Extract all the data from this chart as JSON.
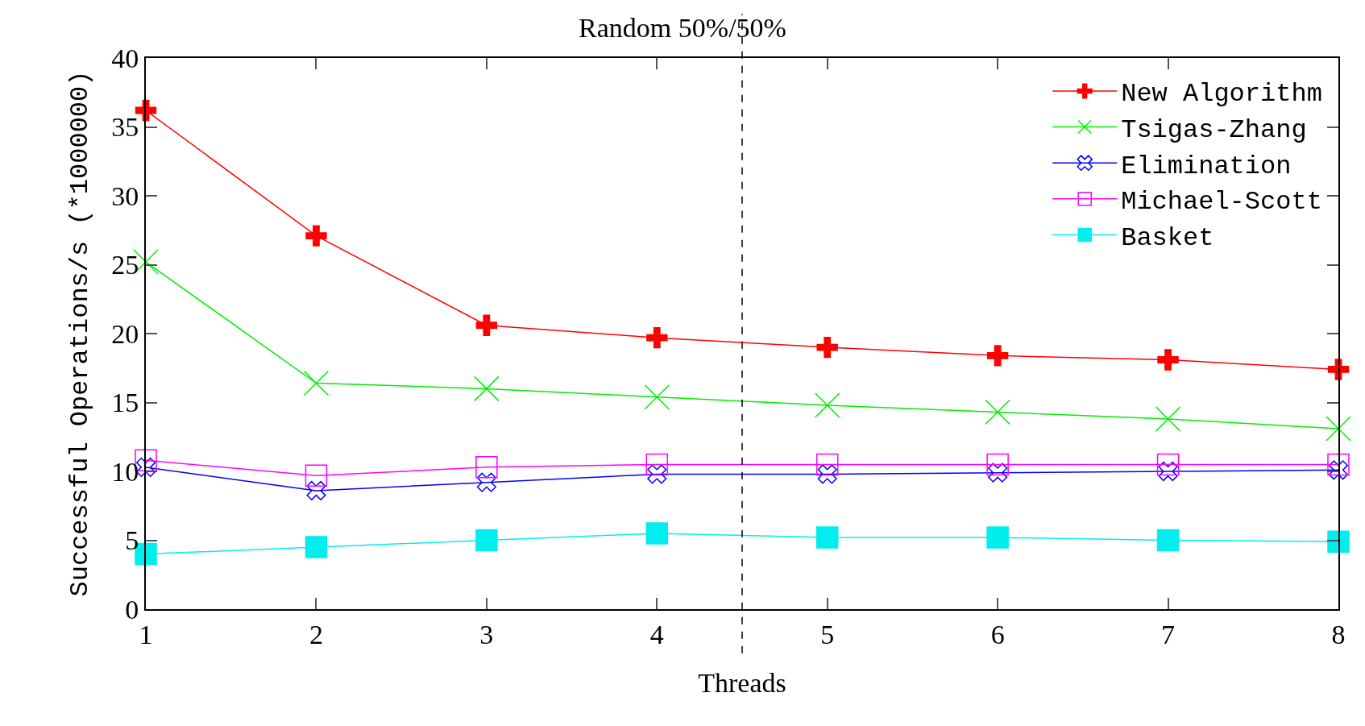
{
  "chart_data": {
    "type": "line",
    "title": "Random 50%/50%",
    "xlabel": "Threads",
    "ylabel": "Successful Operations/s (*1000000)",
    "x": [
      1,
      2,
      3,
      4,
      5,
      6,
      7,
      8
    ],
    "xlim": [
      1,
      8
    ],
    "xticks": [
      1,
      2,
      3,
      4,
      5,
      6,
      7,
      8
    ],
    "ylim": [
      0,
      40
    ],
    "yticks": [
      0,
      5,
      10,
      15,
      20,
      25,
      30,
      35,
      40
    ],
    "grid": false,
    "legend": "top right",
    "ref_lines": [
      {
        "axis": "x",
        "value": 4.5,
        "color": "#000000",
        "line_style": "dashed"
      }
    ],
    "series": [
      {
        "name": "New Algorithm",
        "color": "#ff0000",
        "marker": "cross",
        "values": [
          36.2,
          27.1,
          20.6,
          19.7,
          19.0,
          18.4,
          18.1,
          17.4
        ]
      },
      {
        "name": "Tsigas-Zhang",
        "color": "#00ee00",
        "marker": "cross",
        "values": [
          25.2,
          16.4,
          16.0,
          15.4,
          14.8,
          14.3,
          13.8,
          13.1
        ]
      },
      {
        "name": "Elimination",
        "color": "#0000ff",
        "marker": "cross",
        "values": [
          10.3,
          8.6,
          9.2,
          9.8,
          9.8,
          9.9,
          10.0,
          10.1
        ]
      },
      {
        "name": "Michael-Scott",
        "color": "#ff00ff",
        "marker": "square",
        "values": [
          10.8,
          9.7,
          10.3,
          10.5,
          10.5,
          10.5,
          10.5,
          10.5
        ]
      },
      {
        "name": "Basket",
        "color": "#00eeee",
        "marker": "square",
        "values": [
          4.0,
          4.5,
          5.0,
          5.5,
          5.2,
          5.2,
          5.0,
          4.9
        ]
      }
    ]
  }
}
